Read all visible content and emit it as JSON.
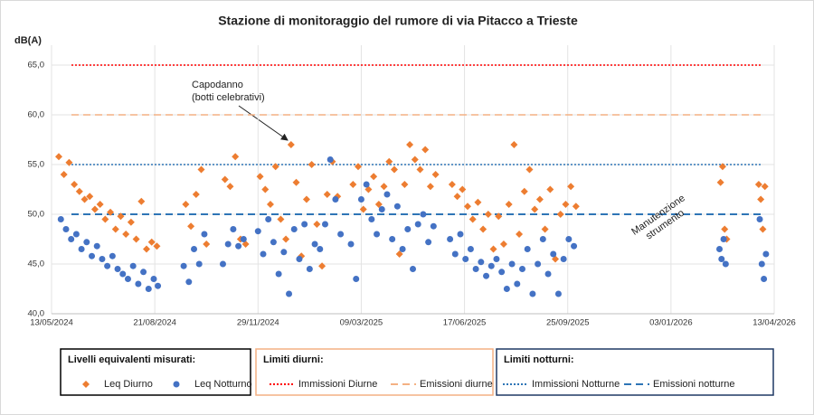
{
  "chart_data": {
    "type": "scatter",
    "title": "Stazione di monitoraggio  del rumore di via Pitacco  a Trieste",
    "y_label": "dB(A)",
    "xlim": [
      "13/05/2024",
      "13/04/2026"
    ],
    "xticks": [
      "13/05/2024",
      "21/08/2024",
      "29/11/2024",
      "09/03/2025",
      "17/06/2025",
      "25/09/2025",
      "03/01/2026",
      "13/04/2026"
    ],
    "ylim": [
      40,
      67
    ],
    "yticks": [
      {
        "value": 40,
        "label": "40,0"
      },
      {
        "value": 45,
        "label": "45,0"
      },
      {
        "value": 50,
        "label": "50,0"
      },
      {
        "value": 55,
        "label": "55,0"
      },
      {
        "value": 60,
        "label": "60,0"
      },
      {
        "value": 65,
        "label": "65,0"
      }
    ],
    "grid": true,
    "series": [
      {
        "name": "Leq Diurno",
        "color": "#ed7d31",
        "marker": "diamond",
        "x": [
          "20/05/2024",
          "25/05/2024",
          "30/05/2024",
          "04/06/2024",
          "09/06/2024",
          "14/06/2024",
          "19/06/2024",
          "24/06/2024",
          "29/06/2024",
          "04/07/2024",
          "09/07/2024",
          "14/07/2024",
          "19/07/2024",
          "24/07/2024",
          "29/07/2024",
          "03/08/2024",
          "08/08/2024",
          "13/08/2024",
          "18/08/2024",
          "23/08/2024",
          "20/09/2024",
          "25/09/2024",
          "30/09/2024",
          "05/10/2024",
          "10/10/2024",
          "28/10/2024",
          "02/11/2024",
          "07/11/2024",
          "12/11/2024",
          "17/11/2024",
          "01/12/2024",
          "06/12/2024",
          "11/12/2024",
          "16/12/2024",
          "21/12/2024",
          "26/12/2024",
          "31/12/2024",
          "05/01/2025",
          "10/01/2025",
          "15/01/2025",
          "20/01/2025",
          "25/01/2025",
          "30/01/2025",
          "04/02/2025",
          "09/02/2025",
          "14/02/2025",
          "01/03/2025",
          "06/03/2025",
          "11/03/2025",
          "16/03/2025",
          "21/03/2025",
          "26/03/2025",
          "31/03/2025",
          "05/04/2025",
          "10/04/2025",
          "15/04/2025",
          "20/04/2025",
          "25/04/2025",
          "30/04/2025",
          "05/05/2025",
          "10/05/2025",
          "15/05/2025",
          "20/05/2025",
          "05/06/2025",
          "10/06/2025",
          "15/06/2025",
          "20/06/2025",
          "25/06/2025",
          "30/06/2025",
          "05/07/2025",
          "10/07/2025",
          "15/07/2025",
          "20/07/2025",
          "25/07/2025",
          "30/07/2025",
          "04/08/2025",
          "09/08/2025",
          "14/08/2025",
          "19/08/2025",
          "24/08/2025",
          "29/08/2025",
          "03/09/2025",
          "08/09/2025",
          "13/09/2025",
          "18/09/2025",
          "23/09/2025",
          "28/09/2025",
          "03/10/2025",
          "20/02/2026",
          "22/02/2026",
          "24/02/2026",
          "26/02/2026",
          "29/03/2026",
          "31/03/2026",
          "02/04/2026",
          "04/04/2026"
        ],
        "values": [
          55.8,
          54.0,
          55.2,
          53.0,
          52.3,
          51.5,
          51.8,
          50.5,
          51.0,
          49.5,
          50.2,
          48.5,
          49.8,
          48.0,
          49.2,
          47.5,
          51.3,
          46.5,
          47.2,
          46.8,
          51.0,
          48.8,
          52.0,
          54.5,
          47.0,
          53.5,
          52.8,
          55.8,
          47.5,
          47.0,
          53.8,
          52.5,
          51.0,
          54.8,
          49.5,
          47.5,
          57.0,
          53.2,
          45.8,
          51.5,
          55.0,
          49.0,
          44.8,
          52.0,
          55.3,
          51.8,
          53.0,
          54.8,
          50.5,
          52.5,
          53.8,
          51.0,
          52.8,
          55.3,
          54.5,
          46.0,
          53.0,
          57.0,
          55.5,
          54.5,
          56.5,
          52.8,
          54.0,
          53.0,
          51.8,
          52.5,
          50.8,
          49.5,
          51.2,
          48.5,
          50.0,
          46.5,
          49.8,
          47.0,
          51.0,
          57.0,
          48.0,
          52.3,
          54.5,
          50.5,
          51.5,
          48.5,
          52.5,
          45.5,
          50.0,
          51.0,
          52.8,
          50.8,
          53.2,
          54.8,
          48.5,
          47.5,
          53.0,
          51.5,
          48.5,
          52.8
        ]
      },
      {
        "name": "Leq Notturno",
        "color": "#4472c4",
        "marker": "circle",
        "x": [
          "22/05/2024",
          "27/05/2024",
          "01/06/2024",
          "06/06/2024",
          "11/06/2024",
          "16/06/2024",
          "21/06/2024",
          "26/06/2024",
          "01/07/2024",
          "06/07/2024",
          "11/07/2024",
          "16/07/2024",
          "21/07/2024",
          "26/07/2024",
          "31/07/2024",
          "05/08/2024",
          "10/08/2024",
          "15/08/2024",
          "20/08/2024",
          "24/08/2024",
          "18/09/2024",
          "23/09/2024",
          "28/09/2024",
          "03/10/2024",
          "08/10/2024",
          "26/10/2024",
          "31/10/2024",
          "05/11/2024",
          "10/11/2024",
          "15/11/2024",
          "29/11/2024",
          "04/12/2024",
          "09/12/2024",
          "14/12/2024",
          "19/12/2024",
          "24/12/2024",
          "29/12/2024",
          "03/01/2025",
          "08/01/2025",
          "13/01/2025",
          "18/01/2025",
          "23/01/2025",
          "28/01/2025",
          "02/02/2025",
          "07/02/2025",
          "12/02/2025",
          "17/02/2025",
          "27/02/2025",
          "04/03/2025",
          "09/03/2025",
          "14/03/2025",
          "19/03/2025",
          "24/03/2025",
          "29/03/2025",
          "03/04/2025",
          "08/04/2025",
          "13/04/2025",
          "18/04/2025",
          "23/04/2025",
          "28/04/2025",
          "03/05/2025",
          "08/05/2025",
          "13/05/2025",
          "18/05/2025",
          "03/06/2025",
          "08/06/2025",
          "13/06/2025",
          "18/06/2025",
          "23/06/2025",
          "28/06/2025",
          "03/07/2025",
          "08/07/2025",
          "13/07/2025",
          "18/07/2025",
          "23/07/2025",
          "28/07/2025",
          "02/08/2025",
          "07/08/2025",
          "12/08/2025",
          "17/08/2025",
          "22/08/2025",
          "27/08/2025",
          "01/09/2025",
          "06/09/2025",
          "11/09/2025",
          "16/09/2025",
          "21/09/2025",
          "26/09/2025",
          "01/10/2025",
          "19/02/2026",
          "21/02/2026",
          "23/02/2026",
          "25/02/2026",
          "30/03/2026",
          "01/04/2026",
          "03/04/2026",
          "05/04/2026"
        ],
        "values": [
          49.5,
          48.5,
          47.5,
          48.0,
          46.5,
          47.2,
          45.8,
          46.8,
          45.5,
          44.8,
          45.8,
          44.5,
          44.0,
          43.5,
          44.8,
          43.0,
          44.2,
          42.5,
          43.5,
          42.8,
          44.8,
          43.2,
          46.5,
          45.0,
          48.0,
          45.0,
          47.0,
          48.5,
          46.8,
          47.5,
          48.3,
          46.0,
          49.5,
          47.2,
          44.0,
          46.2,
          42.0,
          48.5,
          45.5,
          49.0,
          44.5,
          47.0,
          46.5,
          49.0,
          55.5,
          51.5,
          48.0,
          47.0,
          43.5,
          51.5,
          53.0,
          49.5,
          48.0,
          50.5,
          52.0,
          47.5,
          50.8,
          46.5,
          48.5,
          44.5,
          49.0,
          50.0,
          47.2,
          48.8,
          47.5,
          46.0,
          48.0,
          45.5,
          46.5,
          44.5,
          45.2,
          43.8,
          44.8,
          45.5,
          44.2,
          42.5,
          45.0,
          43.0,
          44.5,
          46.5,
          42.0,
          45.0,
          47.5,
          44.0,
          46.0,
          42.0,
          45.5,
          47.5,
          46.8,
          46.5,
          45.5,
          47.5,
          45.0,
          49.5,
          45.0,
          43.5,
          46.0
        ]
      }
    ],
    "reference_lines": [
      {
        "name": "Immissioni Diurne",
        "color": "#ff0000",
        "style": "dotted",
        "value": 65
      },
      {
        "name": "Emissioni diurne",
        "color": "#f4b183",
        "style": "dashed",
        "value": 60
      },
      {
        "name": "Immissioni Notturne",
        "color": "#2e75b6",
        "style": "dotted",
        "value": 55
      },
      {
        "name": "Emissioni notturne",
        "color": "#2e75b6",
        "style": "dashed",
        "value": 50
      }
    ],
    "legend_titles": [
      "Livelli equivalenti misurati:",
      "Limiti diurni:",
      "Limiti notturni:"
    ],
    "annotations": [
      {
        "text": [
          "Capodanno",
          "(botti celebrativi)"
        ]
      },
      {
        "text": [
          "Manutenzione",
          "strumento"
        ]
      }
    ]
  }
}
